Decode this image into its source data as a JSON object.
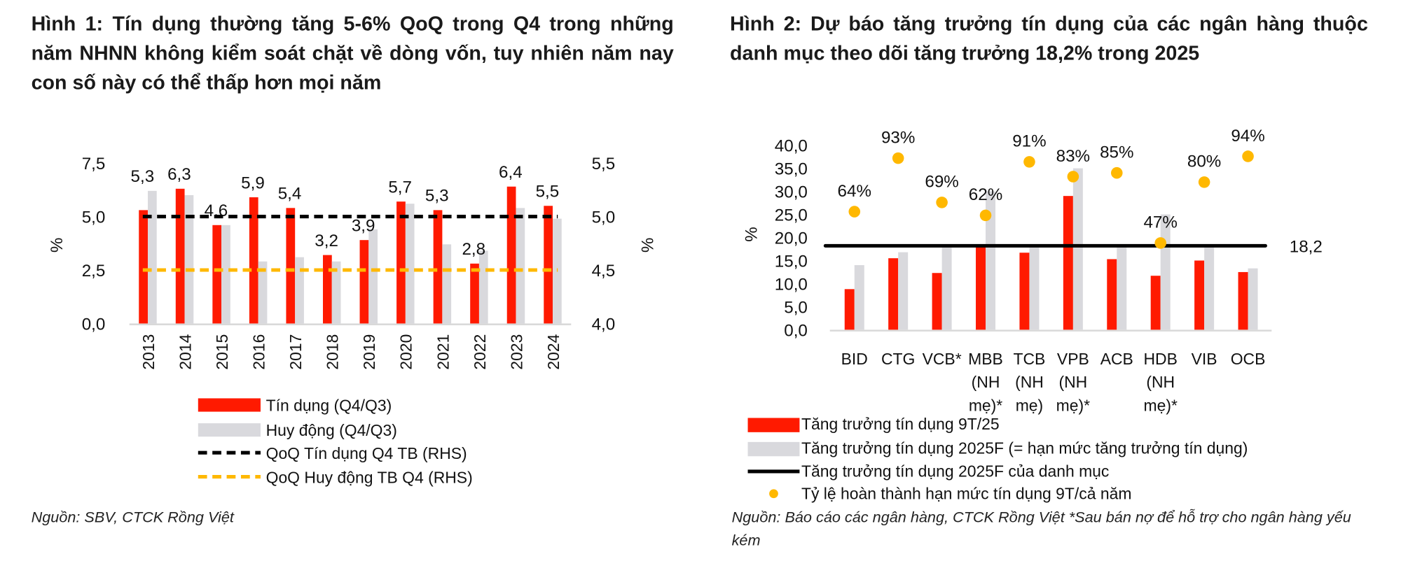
{
  "figure1": {
    "title": "Hình 1: Tín dụng thường tăng 5-6% QoQ trong Q4 trong những năm NHNN không kiểm soát chặt về dòng vốn, tuy nhiên năm nay con số này có thể thấp hơn mọi năm",
    "source": "Nguồn: SBV, CTCK Rồng Việt"
  },
  "figure2": {
    "title": "Hình 2: Dự báo tăng trưởng tín dụng của các ngân hàng thuộc danh mục theo dõi tăng trưởng 18,2% trong 2025",
    "source": "Nguồn: Báo cáo các ngân hàng, CTCK Rồng Việt *Sau bán nợ để hỗ trợ cho ngân hàng yếu kém"
  },
  "colors": {
    "red": "#ff1a00",
    "gray": "#d9d9dd",
    "black": "#000000",
    "yellow": "#ffb800"
  },
  "chart_data": [
    {
      "type": "bar",
      "categories": [
        "2013",
        "2014",
        "2015",
        "2016",
        "2017",
        "2018",
        "2019",
        "2020",
        "2021",
        "2022",
        "2023",
        "2024"
      ],
      "ylabel": "%",
      "y2label": "%",
      "ylim": [
        0,
        7.5
      ],
      "yticks": [
        "0,0",
        "2,5",
        "5,0",
        "7,5"
      ],
      "y2lim": [
        4.0,
        5.5
      ],
      "y2ticks": [
        "4,0",
        "4,5",
        "5,0",
        "5,5"
      ],
      "series": [
        {
          "name": "Tín dụng (Q4/Q3)",
          "kind": "bar",
          "color": "#ff1a00",
          "values": [
            5.3,
            6.3,
            4.6,
            5.9,
            5.4,
            3.2,
            3.9,
            5.7,
            5.3,
            2.8,
            6.4,
            5.5
          ],
          "labels": [
            "5,3",
            "6,3",
            "4,6",
            "5,9",
            "5,4",
            "3,2",
            "3,9",
            "5,7",
            "5,3",
            "2,8",
            "6,4",
            "5,5"
          ]
        },
        {
          "name": "Huy động (Q4/Q3)",
          "kind": "bar",
          "color": "#d9d9dd",
          "values": [
            6.2,
            6.0,
            4.6,
            2.9,
            3.1,
            2.9,
            4.4,
            5.6,
            3.7,
            3.4,
            5.4,
            4.9
          ]
        },
        {
          "name": "QoQ Tín dụng Q4 TB (RHS)",
          "kind": "dashed-line",
          "axis": "right",
          "color": "#000000",
          "value": 5.0
        },
        {
          "name": "QoQ Huy động TB Q4 (RHS)",
          "kind": "dashed-line",
          "axis": "right",
          "color": "#ffb800",
          "value": 4.5
        }
      ],
      "legend": "bottom",
      "grid": false
    },
    {
      "type": "bar",
      "categories": [
        "BID",
        "CTG",
        "VCB*",
        "MBB (NH mẹ)*",
        "TCB (NH mẹ)",
        "VPB (NH mẹ)*",
        "ACB",
        "HDB (NH mẹ)*",
        "VIB",
        "OCB"
      ],
      "category_lines": [
        [
          "BID"
        ],
        [
          "CTG"
        ],
        [
          "VCB*"
        ],
        [
          "MBB",
          "(NH",
          "mẹ)*"
        ],
        [
          "TCB",
          "(NH",
          "mẹ)"
        ],
        [
          "VPB",
          "(NH",
          "mẹ)*"
        ],
        [
          "ACB"
        ],
        [
          "HDB",
          "(NH",
          "mẹ)*"
        ],
        [
          "VIB"
        ],
        [
          "OCB"
        ]
      ],
      "ylabel": "%",
      "ylim": [
        0,
        40
      ],
      "yticks": [
        "0,0",
        "5,0",
        "10,0",
        "15,0",
        "20,0",
        "25,0",
        "30,0",
        "35,0",
        "40,0"
      ],
      "series": [
        {
          "name": "Tăng trưởng tín dụng 9T/25",
          "kind": "bar",
          "color": "#ff1a00",
          "values": [
            8.8,
            15.5,
            12.3,
            18.0,
            16.7,
            29.0,
            15.3,
            11.7,
            15.0,
            12.5
          ]
        },
        {
          "name": "Tăng trưởng tín dụng 2025F (= hạn mức tăng trưởng tín dụng)",
          "kind": "bar",
          "color": "#d9d9dd",
          "values": [
            14.0,
            16.8,
            17.8,
            30.0,
            17.8,
            35.0,
            17.8,
            25.0,
            17.8,
            13.3
          ]
        },
        {
          "name": "Tăng trưởng tín dụng 2025F của danh mục",
          "kind": "line",
          "color": "#000000",
          "value": 18.2,
          "label": "18,2"
        },
        {
          "name": "Tỷ lệ hoàn thành hạn mức tín dụng 9T/cả năm",
          "kind": "scatter",
          "color": "#ffb800",
          "values": [
            64,
            93,
            69,
            62,
            91,
            83,
            85,
            47,
            80,
            94
          ],
          "labels": [
            "64%",
            "93%",
            "69%",
            "62%",
            "91%",
            "83%",
            "85%",
            "47%",
            "80%",
            "94%"
          ]
        }
      ],
      "legend": "bottom",
      "grid": false
    }
  ]
}
